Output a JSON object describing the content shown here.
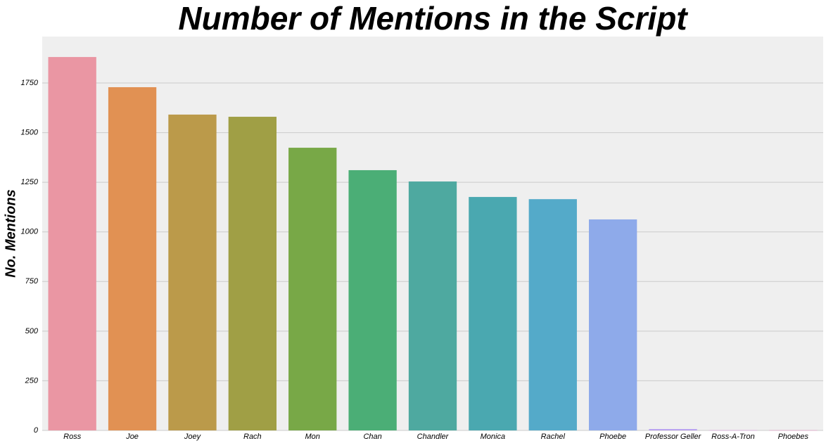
{
  "chart_data": {
    "type": "bar",
    "title": "Number of Mentions in the Script",
    "ylabel": "No. Mentions",
    "categories": [
      "Ross",
      "Joe",
      "Joey",
      "Rach",
      "Mon",
      "Chan",
      "Chandler",
      "Monica",
      "Rachel",
      "Phoebe",
      "Professor Geller",
      "Ross-A-Tron",
      "Phoebes"
    ],
    "values": [
      1881,
      1729,
      1591,
      1580,
      1424,
      1311,
      1254,
      1176,
      1165,
      1063,
      7,
      1,
      1
    ],
    "colors": [
      "#ea96a3",
      "#e19153",
      "#bb9a4a",
      "#a09f45",
      "#78a847",
      "#4bae76",
      "#4ea9a0",
      "#4aa8b0",
      "#54aac9",
      "#8eaaea",
      "#b9a2f0",
      "#e29ae6",
      "#ec8fc8"
    ],
    "ylim": [
      0,
      1984
    ],
    "yticks": [
      0,
      250,
      500,
      750,
      1000,
      1250,
      1500,
      1750
    ],
    "grid": true
  }
}
